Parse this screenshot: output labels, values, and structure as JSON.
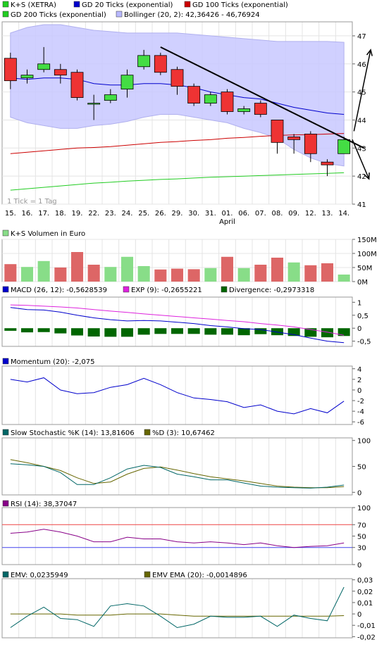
{
  "x_labels": [
    "15.",
    "16.",
    "17.",
    "18.",
    "19.",
    "22.",
    "23.",
    "24.",
    "25.",
    "26.",
    "29.",
    "30.",
    "31.",
    "01.",
    "06.",
    "07.",
    "08.",
    "09.",
    "12.",
    "13.",
    "14."
  ],
  "x_month_label": "April",
  "tick_note": "1 Tick = 1 Tag",
  "colors": {
    "price_line": "#0000cc",
    "gd100": "#cc0000",
    "gd200": "#22cc22",
    "bollinger_fill": "#c8c8ff",
    "up": "#44dd44",
    "down": "#ee3333",
    "vol_up": "#88dd88",
    "vol_down": "#dd6666",
    "macd": "#0000cc",
    "exp": "#dd22dd",
    "divergence": "#006600",
    "momentum": "#0000cc",
    "stoch_k": "#006666",
    "stoch_d": "#666600",
    "rsi": "#880088",
    "emv": "#006666",
    "emv_ema": "#666600"
  },
  "chart_data": [
    {
      "type": "candlestick",
      "legend": [
        {
          "label": "K+S (XETRA)",
          "color": "#22cc22"
        },
        {
          "label": "GD 20 Ticks (exponential)",
          "color": "#0000cc"
        },
        {
          "label": "GD 100 Ticks (exponential)",
          "color": "#cc0000"
        },
        {
          "label": "GD 200 Ticks (exponential)",
          "color": "#22cc22"
        },
        {
          "label": "Bollinger (20, 2): 42,36426 - 46,76924",
          "color": "#b8b8ff"
        }
      ],
      "ylim": [
        41,
        47.5
      ],
      "y_ticks": [
        41,
        42,
        43,
        44,
        45,
        46,
        47
      ],
      "ohlc": [
        [
          46.2,
          46.4,
          45.1,
          45.4
        ],
        [
          45.5,
          45.8,
          45.3,
          45.6
        ],
        [
          45.8,
          46.6,
          45.7,
          46.0
        ],
        [
          45.8,
          46.0,
          45.3,
          45.6
        ],
        [
          45.7,
          45.8,
          44.7,
          44.8
        ],
        [
          44.6,
          44.9,
          44.0,
          44.6
        ],
        [
          44.7,
          45.1,
          44.6,
          44.9
        ],
        [
          45.1,
          45.8,
          44.8,
          45.6
        ],
        [
          45.9,
          46.5,
          45.8,
          46.3
        ],
        [
          46.3,
          46.4,
          45.6,
          45.7
        ],
        [
          45.8,
          45.9,
          44.9,
          45.2
        ],
        [
          45.2,
          45.3,
          44.5,
          44.6
        ],
        [
          44.6,
          45.0,
          44.5,
          44.9
        ],
        [
          45.0,
          45.1,
          44.2,
          44.3
        ],
        [
          44.3,
          44.5,
          44.2,
          44.4
        ],
        [
          44.6,
          44.7,
          44.1,
          44.2
        ],
        [
          44.0,
          44.0,
          42.8,
          43.2
        ],
        [
          43.4,
          43.5,
          42.8,
          43.3
        ],
        [
          43.5,
          43.6,
          42.5,
          42.8
        ],
        [
          42.5,
          42.6,
          42.0,
          42.4
        ],
        [
          42.8,
          43.4,
          42.8,
          43.3
        ]
      ],
      "gd20": [
        45.5,
        45.45,
        45.5,
        45.5,
        45.45,
        45.3,
        45.25,
        45.25,
        45.3,
        45.3,
        45.25,
        45.15,
        45.0,
        44.9,
        44.8,
        44.75,
        44.6,
        44.45,
        44.35,
        44.25,
        44.2
      ],
      "gd100": [
        42.8,
        42.85,
        42.9,
        42.95,
        43.0,
        43.02,
        43.05,
        43.1,
        43.15,
        43.2,
        43.23,
        43.27,
        43.3,
        43.35,
        43.38,
        43.42,
        43.45,
        43.47,
        43.48,
        43.5,
        43.52
      ],
      "gd200": [
        41.5,
        41.55,
        41.6,
        41.65,
        41.7,
        41.75,
        41.78,
        41.82,
        41.85,
        41.88,
        41.9,
        41.93,
        41.96,
        41.98,
        42.0,
        42.02,
        42.04,
        42.06,
        42.08,
        42.1,
        42.12
      ],
      "boll_upper": [
        47.1,
        47.3,
        47.4,
        47.4,
        47.3,
        47.2,
        47.15,
        47.1,
        47.1,
        47.1,
        47.1,
        47.05,
        47.0,
        46.95,
        46.9,
        46.85,
        46.8,
        46.8,
        46.8,
        46.8,
        46.77
      ],
      "boll_lower": [
        44.1,
        43.9,
        43.8,
        43.7,
        43.7,
        43.8,
        43.85,
        43.95,
        44.1,
        44.2,
        44.2,
        44.1,
        44.0,
        43.9,
        43.7,
        43.55,
        43.35,
        42.95,
        42.65,
        42.45,
        42.36
      ],
      "trendline": {
        "from": [
          9,
          46.6
        ],
        "to": [
          21.2,
          43.0
        ]
      },
      "arrow_up": {
        "from": [
          20.6,
          43.6
        ],
        "to": [
          21.6,
          46.5
        ]
      },
      "arrow_down": {
        "from": [
          20.5,
          43.3
        ],
        "to": [
          21.5,
          41.9
        ]
      }
    },
    {
      "type": "bar",
      "title": "K+S Volumen in Euro",
      "ylim": [
        0,
        150
      ],
      "y_ticks": [
        0,
        50,
        100,
        150
      ],
      "y_tick_labels": [
        "0M",
        "50M",
        "100M",
        "150M"
      ],
      "values": [
        62,
        52,
        73,
        50,
        105,
        60,
        52,
        88,
        55,
        43,
        46,
        44,
        48,
        88,
        48,
        60,
        85,
        68,
        58,
        65,
        25
      ],
      "up": [
        false,
        true,
        true,
        false,
        false,
        false,
        true,
        true,
        true,
        false,
        false,
        false,
        true,
        false,
        true,
        false,
        false,
        true,
        false,
        false,
        true
      ]
    },
    {
      "type": "line",
      "legend": [
        {
          "label": "MACD (26, 12): -0,5628539",
          "color": "#0000cc"
        },
        {
          "label": "EXP (9): -0,2655221",
          "color": "#dd22dd"
        },
        {
          "label": "Divergence: -0,2973318",
          "color": "#006600"
        }
      ],
      "ylim": [
        -0.7,
        1.2
      ],
      "y_ticks": [
        -0.5,
        0,
        0.5,
        1
      ],
      "y_tick_labels": [
        "-0,5",
        "0",
        "0,5",
        "1"
      ],
      "macd": [
        0.8,
        0.72,
        0.7,
        0.62,
        0.5,
        0.4,
        0.33,
        0.28,
        0.3,
        0.28,
        0.23,
        0.18,
        0.1,
        0.05,
        -0.02,
        -0.05,
        -0.15,
        -0.25,
        -0.38,
        -0.5,
        -0.56
      ],
      "exp": [
        0.9,
        0.88,
        0.85,
        0.82,
        0.78,
        0.72,
        0.66,
        0.61,
        0.55,
        0.5,
        0.45,
        0.4,
        0.35,
        0.3,
        0.25,
        0.18,
        0.12,
        0.05,
        -0.05,
        -0.15,
        -0.27
      ],
      "divergence": [
        -0.1,
        -0.16,
        -0.15,
        -0.2,
        -0.28,
        -0.32,
        -0.33,
        -0.33,
        -0.25,
        -0.22,
        -0.22,
        -0.22,
        -0.25,
        -0.25,
        -0.27,
        -0.23,
        -0.27,
        -0.3,
        -0.33,
        -0.35,
        -0.3
      ]
    },
    {
      "type": "line",
      "legend": [
        {
          "label": "Momentum (20): -2,075",
          "color": "#0000cc"
        }
      ],
      "ylim": [
        -6.5,
        4.5
      ],
      "y_ticks": [
        -6,
        -4,
        -2,
        0,
        2,
        4
      ],
      "momentum": [
        2,
        1.5,
        2.3,
        0,
        -0.7,
        -0.5,
        0.5,
        1,
        2.2,
        1,
        -0.5,
        -1.5,
        -1.8,
        -2.2,
        -3.3,
        -2.8,
        -4,
        -4.5,
        -3.5,
        -4.3,
        -2.1
      ]
    },
    {
      "type": "line",
      "legend": [
        {
          "label": "Slow Stochastic %K (14): 13,81606",
          "color": "#006666"
        },
        {
          "label": "%D (3): 10,67462",
          "color": "#666600"
        }
      ],
      "ylim": [
        -5,
        105
      ],
      "y_ticks": [
        0,
        50,
        100
      ],
      "k": [
        55,
        53,
        50,
        38,
        15,
        15,
        28,
        45,
        52,
        48,
        35,
        30,
        24,
        24,
        18,
        12,
        10,
        9,
        8,
        10,
        14
      ],
      "d": [
        63,
        57,
        50,
        42,
        28,
        17,
        20,
        35,
        46,
        49,
        43,
        36,
        30,
        26,
        22,
        17,
        12,
        10,
        9,
        9,
        11
      ]
    },
    {
      "type": "line",
      "legend": [
        {
          "label": "RSI (14): 38,37047",
          "color": "#880088"
        }
      ],
      "ylim": [
        0,
        100
      ],
      "y_ticks": [
        0,
        30,
        50,
        70,
        100
      ],
      "reference_lines": [
        {
          "value": 70,
          "color": "#ee4444"
        },
        {
          "value": 30,
          "color": "#4444ee"
        }
      ],
      "rsi": [
        55,
        57,
        62,
        57,
        50,
        40,
        40,
        48,
        45,
        45,
        40,
        38,
        40,
        38,
        35,
        38,
        33,
        30,
        32,
        33,
        38
      ]
    },
    {
      "type": "line",
      "legend": [
        {
          "label": "EMV: 0,0235949",
          "color": "#006666"
        },
        {
          "label": "EMV EMA (20): -0,0014896",
          "color": "#666600"
        }
      ],
      "ylim": [
        -0.021,
        0.031
      ],
      "y_ticks": [
        -0.02,
        -0.01,
        0,
        0.01,
        0.02,
        0.03
      ],
      "y_tick_labels": [
        "-0,02",
        "-0,01",
        "0",
        "0,01",
        "0,02",
        "0,03"
      ],
      "emv": [
        -0.012,
        -0.002,
        0.006,
        -0.004,
        -0.005,
        -0.011,
        0.007,
        0.009,
        0.007,
        -0.002,
        -0.012,
        -0.009,
        -0.002,
        -0.003,
        -0.003,
        -0.002,
        -0.011,
        -0.001,
        -0.004,
        -0.006,
        0.0236
      ],
      "emv_ema": [
        0,
        0,
        0,
        0,
        -0.001,
        -0.001,
        -0.001,
        0,
        0,
        0,
        -0.001,
        -0.002,
        -0.002,
        -0.002,
        -0.002,
        -0.002,
        -0.002,
        -0.002,
        -0.002,
        -0.002,
        -0.0015
      ]
    }
  ]
}
